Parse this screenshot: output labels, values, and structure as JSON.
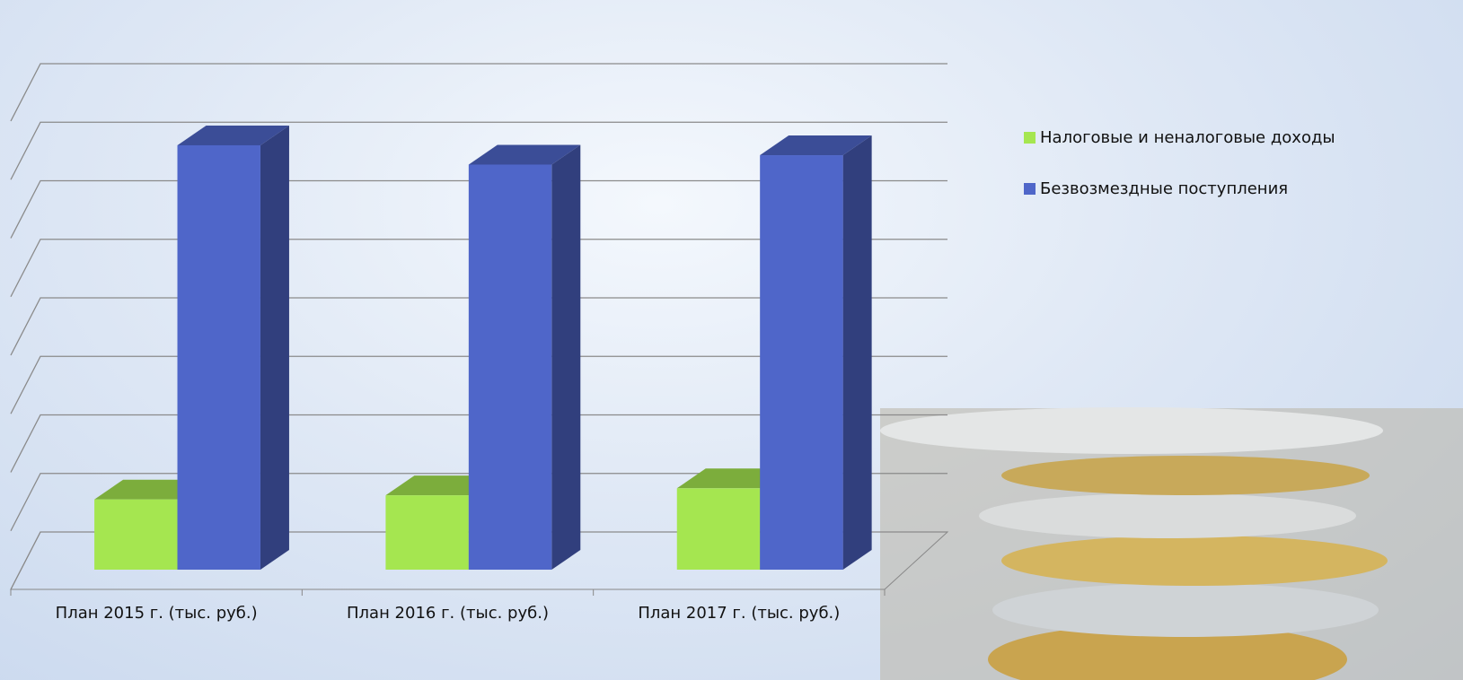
{
  "chart_data": {
    "type": "bar3d",
    "categories": [
      "План 2015 г.   (тыс. руб.)",
      "План  2016 г.     (тыс. руб.)",
      "План  2017 г.     (тыс. руб.)"
    ],
    "series": [
      {
        "name": "Налоговые и неналоговые доходы",
        "color": "#a5e650",
        "values": [
          1.2,
          1.27,
          1.39
        ]
      },
      {
        "name": "Безвозмездные поступления",
        "color": "#4f66c9",
        "values": [
          7.25,
          6.92,
          7.08
        ]
      }
    ],
    "ylim": [
      0,
      8
    ],
    "yticks": [
      0,
      1,
      2,
      3,
      4,
      5,
      6,
      7,
      8
    ],
    "grid": true,
    "legend": "right"
  }
}
